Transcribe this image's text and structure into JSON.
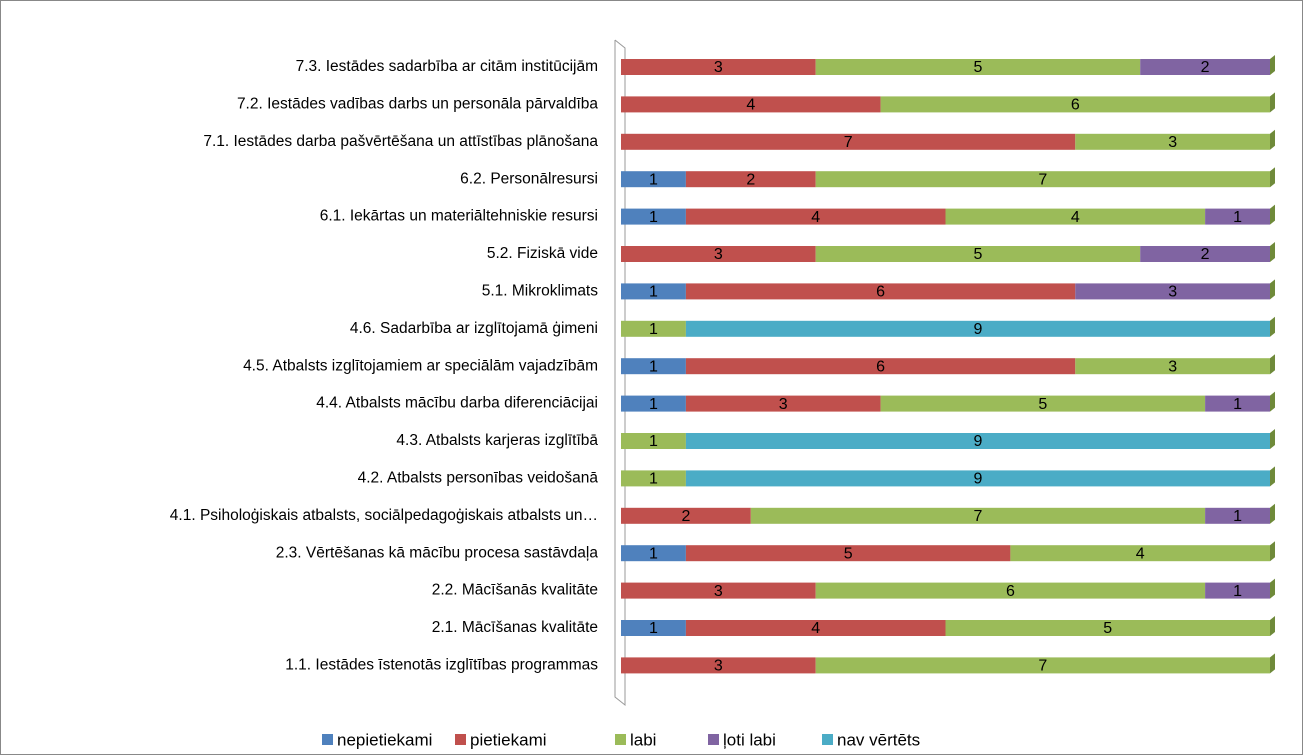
{
  "chart_data": {
    "type": "stacked-bar-horizontal",
    "categories": [
      "7.3. Iestādes sadarbība ar citām institūcijām",
      "7.2. Iestādes vadības darbs un personāla pārvaldība",
      "7.1. Iestādes darba pašvērtēšana un attīstības plānošana",
      "6.2. Personālresursi",
      "6.1. Iekārtas un materiāltehniskie resursi",
      "5.2. Fiziskā vide",
      "5.1. Mikroklimats",
      "4.6. Sadarbība ar izglītojamā ģimeni",
      "4.5. Atbalsts izglītojamiem ar speciālām vajadzībām",
      "4.4. Atbalsts mācību darba diferenciācijai",
      "4.3. Atbalsts karjeras izglītībā",
      "4.2. Atbalsts personības veidošanā",
      "4.1. Psiholoģiskais atbalsts, sociālpedagoģiskais atbalsts un…",
      "2.3. Vērtēšanas kā mācību procesa sastāvdaļa",
      "2.2. Mācīšanās kvalitāte",
      "2.1. Mācīšanas kvalitāte",
      "1.1. Iestādes īstenotās izglītības programmas"
    ],
    "series": [
      {
        "name": "nepietiekami",
        "color": "#4f81bd",
        "values": [
          0,
          0,
          0,
          1,
          1,
          0,
          1,
          0,
          1,
          1,
          0,
          0,
          0,
          1,
          0,
          1,
          0
        ]
      },
      {
        "name": "pietiekami",
        "color": "#c0504d",
        "values": [
          3,
          4,
          7,
          2,
          4,
          3,
          6,
          0,
          6,
          3,
          0,
          0,
          2,
          5,
          3,
          4,
          3
        ]
      },
      {
        "name": "labi",
        "color": "#9bbb59",
        "values": [
          5,
          6,
          3,
          7,
          4,
          5,
          0,
          1,
          3,
          5,
          1,
          1,
          7,
          4,
          6,
          5,
          7
        ]
      },
      {
        "name": "ļoti labi",
        "color": "#8064a2",
        "values": [
          2,
          0,
          0,
          0,
          1,
          2,
          3,
          0,
          0,
          1,
          0,
          0,
          1,
          0,
          1,
          0,
          0
        ]
      },
      {
        "name": "nav vērtēts",
        "color": "#4bacc6",
        "values": [
          0,
          0,
          0,
          0,
          0,
          0,
          0,
          9,
          0,
          0,
          9,
          9,
          0,
          0,
          0,
          0,
          0
        ]
      }
    ],
    "xlim": [
      0,
      10
    ],
    "legend": "bottom"
  }
}
